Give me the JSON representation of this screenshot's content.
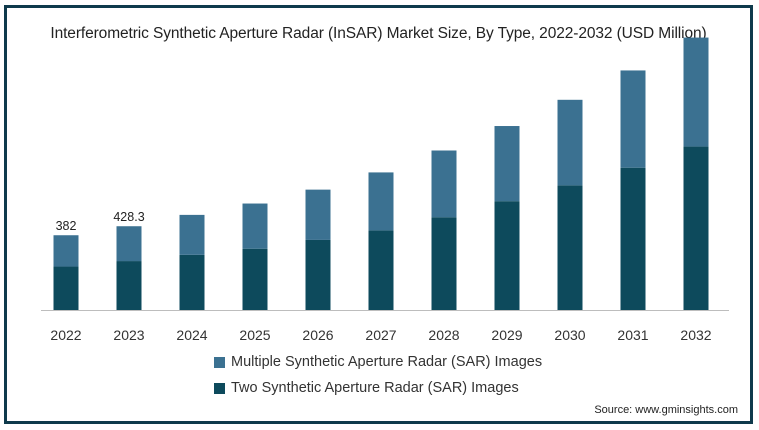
{
  "chart_data": {
    "type": "bar",
    "stacked": true,
    "title": "Interferometric Synthetic Aperture Radar (InSAR) Market Size, By Type, 2022-2032 (USD Million)",
    "categories": [
      "2022",
      "2023",
      "2024",
      "2025",
      "2026",
      "2027",
      "2028",
      "2029",
      "2030",
      "2031",
      "2032"
    ],
    "series": [
      {
        "name": "Two Synthetic Aperture Radar (SAR) Images",
        "color": "#0d4a5c",
        "values": [
          222,
          250,
          282,
          313,
          358,
          407,
          474,
          556,
          637,
          727,
          835
        ]
      },
      {
        "name": "Multiple Synthetic Aperture Radar (SAR) Images",
        "color": "#3b7191",
        "values": [
          160,
          178,
          204,
          231,
          257,
          296,
          341,
          384,
          437,
          497,
          557
        ]
      }
    ],
    "legend_order": [
      1,
      0
    ],
    "data_labels": [
      {
        "category": "2022",
        "text": "382"
      },
      {
        "category": "2023",
        "text": "428.3"
      }
    ],
    "ylim": [
      0,
      1400
    ],
    "grid": false,
    "legend_position": "bottom",
    "xlabel": "",
    "ylabel": ""
  },
  "source": "Source: www.gminsights.com"
}
